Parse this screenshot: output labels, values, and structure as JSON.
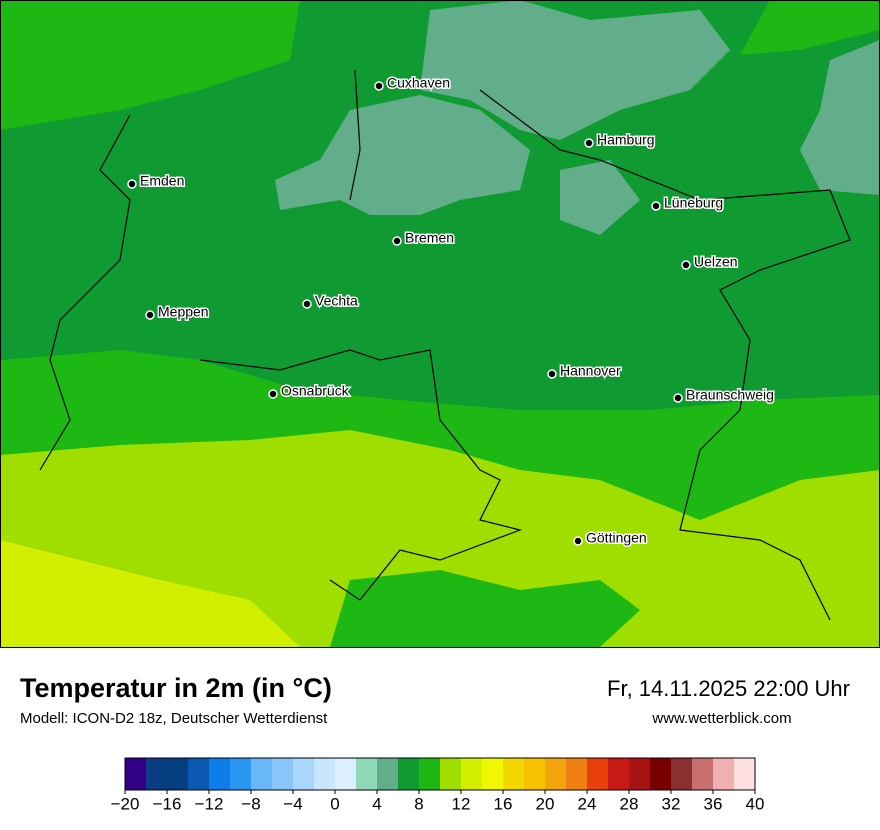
{
  "title": "Temperatur in 2m (in °C)",
  "subtitle": "Modell: ICON-D2 18z, Deutscher Wetterdienst",
  "datetime": "Fr, 14.11.2025 22:00 Uhr",
  "website": "www.wetterblick.com",
  "cities": [
    "Cuxhaven",
    "Hamburg",
    "Emden",
    "Lüneburg",
    "Bremen",
    "Uelzen",
    "Vechta",
    "Meppen",
    "Hannover",
    "Osnabrück",
    "Braunschweig",
    "Göttingen"
  ],
  "colorbar": {
    "lim": [
      -20,
      40
    ],
    "ticks": [
      {
        "value": -20,
        "label": "−20"
      },
      {
        "value": -16,
        "label": "−16"
      },
      {
        "value": -12,
        "label": "−12"
      },
      {
        "value": -8,
        "label": "−8"
      },
      {
        "value": -4,
        "label": "−4"
      },
      0,
      4,
      8,
      12,
      16,
      20,
      24,
      28,
      32,
      36,
      40
    ],
    "colors": [
      "#330088",
      "#0a3d84",
      "#063f80",
      "#0a58b0",
      "#0d7de8",
      "#2a96f0",
      "#6ab7f8",
      "#88c5fb",
      "#a8d6fc",
      "#c8e6fd",
      "#ddeefe",
      "#8fd9b8",
      "#62ae8a",
      "#0f9a32",
      "#1db814",
      "#a0de00",
      "#d2ef00",
      "#f0f800",
      "#f2d700",
      "#f5c100",
      "#f3a40a",
      "#f08010",
      "#e8400a",
      "#c81a14",
      "#a81414",
      "#7a0000",
      "#8a3030",
      "#c87070",
      "#f0b0b0",
      "#ffe0e0"
    ]
  }
}
